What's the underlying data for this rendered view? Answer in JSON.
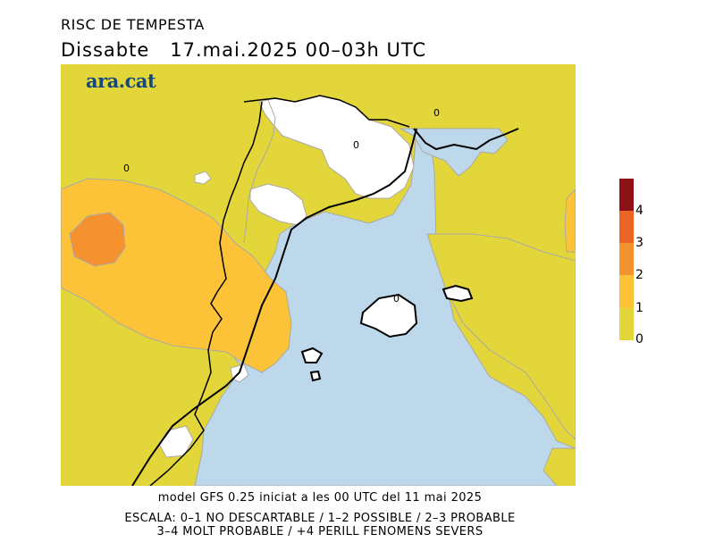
{
  "title": "RISC DE TEMPESTA",
  "subtitle": "Dissabte   17.mai.2025 00–03h UTC",
  "logo": "ara.cat",
  "contour_label": "0",
  "colors": {
    "sea": "#bcd8ea",
    "level_0": "#e3d63a",
    "level_1": "#fcc238",
    "level_2": "#f5912e",
    "level_3": "#eb6423",
    "level_4": "#8c1015",
    "no_risk": "#ffffff"
  },
  "legend": {
    "levels": [
      "0",
      "1",
      "2",
      "3",
      "4"
    ]
  },
  "footer": {
    "model_line": "model GFS 0.25 iniciat a les 00 UTC del 11 mai 2025",
    "scale_line1": "ESCALA: 0–1 NO DESCARTABLE / 1–2 POSSIBLE / 2–3 PROBABLE",
    "scale_line2": "3–4 MOLT PROBABLE / +4 PERILL FENOMENS SEVERS"
  }
}
